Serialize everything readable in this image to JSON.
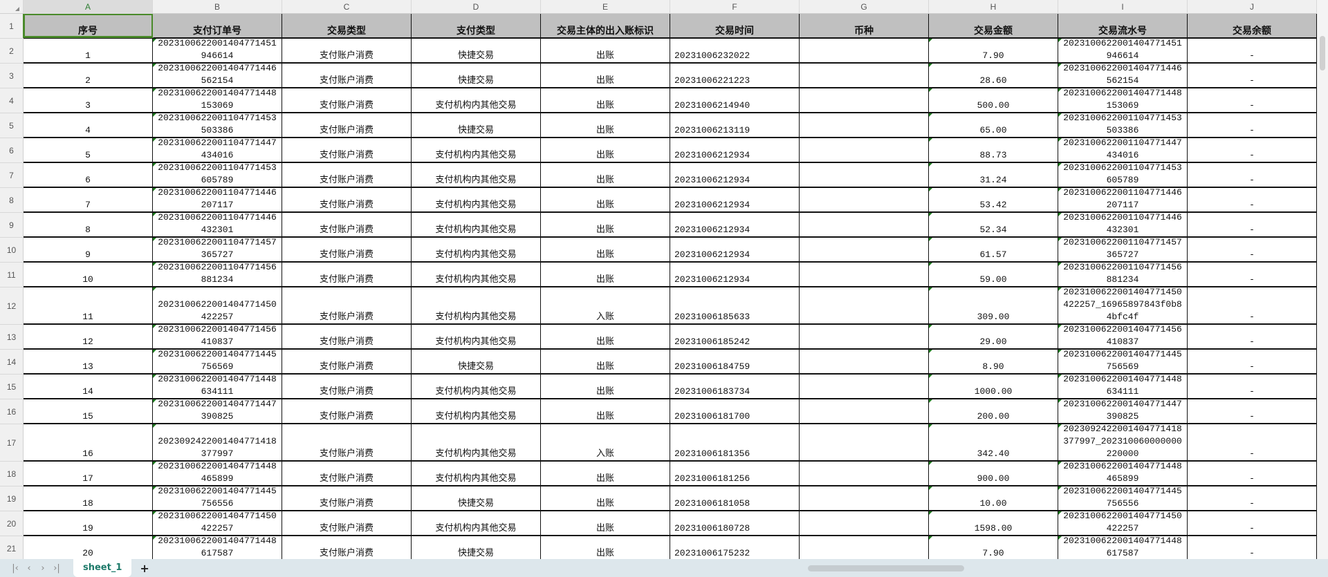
{
  "sheet": {
    "columns": [
      "A",
      "B",
      "C",
      "D",
      "E",
      "F",
      "G",
      "H",
      "I",
      "J"
    ],
    "headers": [
      "序号",
      "支付订单号",
      "交易类型",
      "支付类型",
      "交易主体的出入账标识",
      "交易时间",
      "币种",
      "交易金额",
      "交易流水号",
      "交易余额"
    ],
    "rows": [
      [
        "1",
        "2023100622001404771451946614",
        "支付账户消费",
        "快捷交易",
        "出账",
        "20231006232022",
        "",
        "7.90",
        "2023100622001404771451946614",
        "-"
      ],
      [
        "2",
        "2023100622001404771446562154",
        "支付账户消费",
        "快捷交易",
        "出账",
        "20231006221223",
        "",
        "28.60",
        "2023100622001404771446562154",
        "-"
      ],
      [
        "3",
        "2023100622001404771448153069",
        "支付账户消费",
        "支付机构内其他交易",
        "出账",
        "20231006214940",
        "",
        "500.00",
        "2023100622001404771448153069",
        "-"
      ],
      [
        "4",
        "2023100622001104771453503386",
        "支付账户消费",
        "快捷交易",
        "出账",
        "20231006213119",
        "",
        "65.00",
        "2023100622001104771453503386",
        "-"
      ],
      [
        "5",
        "2023100622001104771447434016",
        "支付账户消费",
        "支付机构内其他交易",
        "出账",
        "20231006212934",
        "",
        "88.73",
        "2023100622001104771447434016",
        "-"
      ],
      [
        "6",
        "2023100622001104771453605789",
        "支付账户消费",
        "支付机构内其他交易",
        "出账",
        "20231006212934",
        "",
        "31.24",
        "2023100622001104771453605789",
        "-"
      ],
      [
        "7",
        "2023100622001104771446207117",
        "支付账户消费",
        "支付机构内其他交易",
        "出账",
        "20231006212934",
        "",
        "53.42",
        "2023100622001104771446207117",
        "-"
      ],
      [
        "8",
        "2023100622001104771446432301",
        "支付账户消费",
        "支付机构内其他交易",
        "出账",
        "20231006212934",
        "",
        "52.34",
        "2023100622001104771446432301",
        "-"
      ],
      [
        "9",
        "2023100622001104771457365727",
        "支付账户消费",
        "支付机构内其他交易",
        "出账",
        "20231006212934",
        "",
        "61.57",
        "2023100622001104771457365727",
        "-"
      ],
      [
        "10",
        "2023100622001104771456881234",
        "支付账户消费",
        "支付机构内其他交易",
        "出账",
        "20231006212934",
        "",
        "59.00",
        "2023100622001104771456881234",
        "-"
      ],
      [
        "11",
        "2023100622001404771450422257",
        "支付账户消费",
        "支付机构内其他交易",
        "入账",
        "20231006185633",
        "",
        "309.00",
        "2023100622001404771450422257_16965897843f0b84bfc4f",
        "-"
      ],
      [
        "12",
        "2023100622001404771456410837",
        "支付账户消费",
        "支付机构内其他交易",
        "出账",
        "20231006185242",
        "",
        "29.00",
        "2023100622001404771456410837",
        "-"
      ],
      [
        "13",
        "2023100622001404771445756569",
        "支付账户消费",
        "快捷交易",
        "出账",
        "20231006184759",
        "",
        "8.90",
        "2023100622001404771445756569",
        "-"
      ],
      [
        "14",
        "2023100622001404771448634111",
        "支付账户消费",
        "支付机构内其他交易",
        "出账",
        "20231006183734",
        "",
        "1000.00",
        "2023100622001404771448634111",
        "-"
      ],
      [
        "15",
        "2023100622001404771447390825",
        "支付账户消费",
        "支付机构内其他交易",
        "出账",
        "20231006181700",
        "",
        "200.00",
        "2023100622001404771447390825",
        "-"
      ],
      [
        "16",
        "2023092422001404771418377997",
        "支付账户消费",
        "支付机构内其他交易",
        "入账",
        "20231006181356",
        "",
        "342.40",
        "2023092422001404771418377997_202310060000000220000",
        "-"
      ],
      [
        "17",
        "2023100622001404771448465899",
        "支付账户消费",
        "支付机构内其他交易",
        "出账",
        "20231006181256",
        "",
        "900.00",
        "2023100622001404771448465899",
        "-"
      ],
      [
        "18",
        "2023100622001404771445756556",
        "支付账户消费",
        "快捷交易",
        "出账",
        "20231006181058",
        "",
        "10.00",
        "2023100622001404771445756556",
        "-"
      ],
      [
        "19",
        "2023100622001404771450422257",
        "支付账户消费",
        "支付机构内其他交易",
        "出账",
        "20231006180728",
        "",
        "1598.00",
        "2023100622001404771450422257",
        "-"
      ],
      [
        "20",
        "2023100622001404771448617587",
        "支付账户消费",
        "快捷交易",
        "出账",
        "20231006175232",
        "",
        "7.90",
        "2023100622001404771448617587",
        "-"
      ]
    ]
  },
  "tabs": {
    "active": "sheet_1",
    "add": "+"
  },
  "colors": {
    "header_bg": "#c0c0c0",
    "active_cell": "#4a8a2a",
    "tab_text": "#1e7a6a",
    "bottom_bar": "#dde7ec"
  }
}
